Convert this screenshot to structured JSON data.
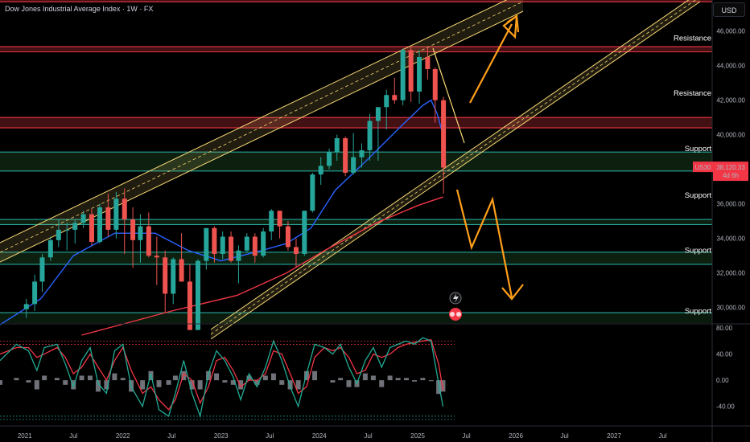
{
  "header": {
    "title": "Dow Jones Industrial Average Index · 1W · FX",
    "currency": "USD"
  },
  "price_tag": {
    "symbol": "US30",
    "price": "38,120.33",
    "countdown": "4d 6h"
  },
  "chart_data": {
    "type": "line",
    "title": "Dow Jones Industrial Average Index · 1W · FX",
    "y_axis": {
      "ticks": [
        "46,000.00",
        "44,000.00",
        "42,000.00",
        "40,000.00",
        "36,000.00",
        "34,000.00",
        "32,000.00",
        "30,000.00"
      ],
      "tick_values": [
        46000,
        44000,
        42000,
        40000,
        36000,
        34000,
        32000,
        30000
      ],
      "ylim": [
        29100,
        47800
      ]
    },
    "x_axis": {
      "ticks": [
        "2021",
        "Jul",
        "2022",
        "Jul",
        "2023",
        "Jul",
        "2024",
        "Jul",
        "2025",
        "Jul",
        "2026",
        "Jul",
        "2027",
        "Jul"
      ],
      "tick_dates": [
        "2021-01-01",
        "2021-07-01",
        "2022-01-01",
        "2022-07-01",
        "2023-01-01",
        "2023-07-01",
        "2024-01-01",
        "2024-07-01",
        "2025-01-01",
        "2025-07-01",
        "2026-01-01",
        "2026-07-01",
        "2027-01-01",
        "2027-07-01"
      ],
      "xlim": [
        "2020-10-01",
        "2028-01-01"
      ]
    },
    "series": [
      {
        "color": "#2962ff",
        "points": [
          [
            "2020-10-01",
            29000
          ],
          [
            "2021-03-01",
            30500
          ],
          [
            "2021-07-01",
            33000
          ],
          [
            "2021-12-01",
            34300
          ],
          [
            "2022-05-01",
            34300
          ],
          [
            "2022-09-01",
            33300
          ],
          [
            "2023-01-01",
            32700
          ],
          [
            "2023-06-01",
            33300
          ],
          [
            "2023-09-01",
            33700
          ],
          [
            "2023-12-01",
            34600
          ],
          [
            "2024-03-01",
            36800
          ],
          [
            "2024-07-01",
            38600
          ],
          [
            "2024-11-01",
            40500
          ],
          [
            "2025-01-20",
            41700
          ],
          [
            "2025-02-20",
            42000
          ],
          [
            "2025-03-15",
            41200
          ],
          [
            "2025-04-05",
            40000
          ]
        ]
      },
      {
        "color": "#f23645",
        "points": [
          [
            "2021-08-01",
            28400
          ],
          [
            "2022-07-01",
            29800
          ],
          [
            "2023-03-01",
            30700
          ],
          [
            "2023-09-01",
            32000
          ],
          [
            "2024-02-01",
            33400
          ],
          [
            "2024-08-01",
            34900
          ],
          [
            "2025-01-01",
            35900
          ],
          [
            "2025-04-05",
            36400
          ]
        ]
      },
      {
        "type": "candlestick",
        "bull_color": "#26a69a",
        "bear_color": "#ef5350",
        "ohlc": [
          [
            "2021-01-01",
            29900,
            30500,
            29400,
            30200
          ],
          [
            "2021-02-01",
            30200,
            31900,
            29800,
            31500
          ],
          [
            "2021-03-01",
            31500,
            33100,
            30900,
            32900
          ],
          [
            "2021-04-01",
            32900,
            34100,
            32700,
            33900
          ],
          [
            "2021-05-01",
            33900,
            35100,
            33500,
            34500
          ],
          [
            "2021-06-01",
            34500,
            34900,
            33300,
            34500
          ],
          [
            "2021-07-01",
            34500,
            35100,
            33700,
            34900
          ],
          [
            "2021-08-01",
            34900,
            35600,
            34600,
            35400
          ],
          [
            "2021-09-01",
            35400,
            35700,
            33600,
            33800
          ],
          [
            "2021-10-01",
            33800,
            36000,
            33700,
            35800
          ],
          [
            "2021-11-01",
            35800,
            36600,
            34100,
            34500
          ],
          [
            "2021-12-01",
            34500,
            36700,
            34000,
            36300
          ],
          [
            "2022-01-01",
            36300,
            36900,
            33100,
            35100
          ],
          [
            "2022-02-01",
            35100,
            35800,
            32300,
            33900
          ],
          [
            "2022-03-01",
            33900,
            35400,
            32600,
            34700
          ],
          [
            "2022-04-01",
            34700,
            35500,
            32900,
            33000
          ],
          [
            "2022-05-01",
            33000,
            34100,
            31300,
            32900
          ],
          [
            "2022-06-01",
            32900,
            33300,
            29700,
            30800
          ],
          [
            "2022-07-01",
            30800,
            32900,
            30200,
            32800
          ],
          [
            "2022-08-01",
            32800,
            34300,
            31600,
            31500
          ],
          [
            "2022-09-01",
            31500,
            32500,
            28700,
            28700
          ],
          [
            "2022-10-01",
            28700,
            32800,
            28700,
            32700
          ],
          [
            "2022-11-01",
            32700,
            34600,
            32200,
            34600
          ],
          [
            "2022-12-01",
            34600,
            34700,
            32600,
            33100
          ],
          [
            "2023-01-01",
            33100,
            34400,
            32800,
            34100
          ],
          [
            "2023-02-01",
            34100,
            34400,
            32600,
            32700
          ],
          [
            "2023-03-01",
            32700,
            33600,
            31400,
            33300
          ],
          [
            "2023-04-01",
            33300,
            34300,
            33200,
            34100
          ],
          [
            "2023-05-01",
            34100,
            34300,
            32600,
            33000
          ],
          [
            "2023-06-01",
            33000,
            34600,
            32900,
            34400
          ],
          [
            "2023-07-01",
            34400,
            35700,
            33900,
            35600
          ],
          [
            "2023-08-01",
            35600,
            35600,
            34000,
            34700
          ],
          [
            "2023-09-01",
            34700,
            35000,
            33300,
            33500
          ],
          [
            "2023-10-01",
            33500,
            34000,
            32300,
            33100
          ],
          [
            "2023-11-01",
            33100,
            35600,
            33000,
            35600
          ],
          [
            "2023-12-01",
            35600,
            37800,
            35500,
            37700
          ],
          [
            "2024-01-01",
            37700,
            38700,
            37100,
            38200
          ],
          [
            "2024-02-01",
            38200,
            39200,
            38000,
            39000
          ],
          [
            "2024-03-01",
            39000,
            40000,
            38500,
            39800
          ],
          [
            "2024-04-01",
            39800,
            39900,
            37600,
            37800
          ],
          [
            "2024-05-01",
            37800,
            40100,
            37700,
            38700
          ],
          [
            "2024-06-01",
            38700,
            39500,
            38100,
            39100
          ],
          [
            "2024-07-01",
            39100,
            41200,
            38500,
            40800
          ],
          [
            "2024-08-01",
            40800,
            41600,
            38500,
            41600
          ],
          [
            "2024-09-01",
            41600,
            42600,
            40300,
            42300
          ],
          [
            "2024-10-01",
            42300,
            43300,
            41800,
            42000
          ],
          [
            "2024-11-01",
            42000,
            45000,
            41700,
            44900
          ],
          [
            "2024-12-01",
            44900,
            45100,
            41900,
            42500
          ],
          [
            "2025-01-01",
            42500,
            44900,
            41800,
            44500
          ],
          [
            "2025-02-01",
            44500,
            45100,
            43200,
            43800
          ],
          [
            "2025-03-01",
            43800,
            43900,
            40700,
            42000
          ],
          [
            "2025-04-01",
            42000,
            42200,
            36600,
            38100
          ]
        ]
      },
      {
        "type": "oscillator",
        "color": "#22ab94",
        "ylim": [
          -65,
          85
        ],
        "ticks": [
          "80.00",
          "40.00",
          "0.00",
          "-40.00"
        ],
        "tick_values": [
          80,
          40,
          0,
          -40
        ],
        "points": [
          [
            "2020-10-01",
            30
          ],
          [
            "2020-12-01",
            55
          ],
          [
            "2021-01-15",
            45
          ],
          [
            "2021-02-15",
            15
          ],
          [
            "2021-03-15",
            50
          ],
          [
            "2021-05-01",
            55
          ],
          [
            "2021-06-01",
            25
          ],
          [
            "2021-07-01",
            -10
          ],
          [
            "2021-08-01",
            30
          ],
          [
            "2021-09-01",
            50
          ],
          [
            "2021-10-01",
            -5
          ],
          [
            "2021-11-01",
            -20
          ],
          [
            "2021-12-01",
            45
          ],
          [
            "2022-01-01",
            55
          ],
          [
            "2022-02-01",
            -10
          ],
          [
            "2022-03-15",
            -40
          ],
          [
            "2022-04-15",
            10
          ],
          [
            "2022-05-15",
            -45
          ],
          [
            "2022-06-20",
            -55
          ],
          [
            "2022-07-15",
            -20
          ],
          [
            "2022-08-15",
            30
          ],
          [
            "2022-09-15",
            -20
          ],
          [
            "2022-10-15",
            -55
          ],
          [
            "2022-11-15",
            10
          ],
          [
            "2022-12-15",
            45
          ],
          [
            "2023-01-15",
            30
          ],
          [
            "2023-02-15",
            5
          ],
          [
            "2023-03-15",
            -30
          ],
          [
            "2023-04-15",
            10
          ],
          [
            "2023-05-15",
            -10
          ],
          [
            "2023-06-15",
            20
          ],
          [
            "2023-07-15",
            60
          ],
          [
            "2023-08-15",
            30
          ],
          [
            "2023-09-15",
            -10
          ],
          [
            "2023-10-15",
            -40
          ],
          [
            "2023-11-15",
            10
          ],
          [
            "2023-12-15",
            55
          ],
          [
            "2024-01-20",
            50
          ],
          [
            "2024-02-20",
            40
          ],
          [
            "2024-03-20",
            55
          ],
          [
            "2024-04-20",
            20
          ],
          [
            "2024-05-20",
            -5
          ],
          [
            "2024-06-20",
            30
          ],
          [
            "2024-07-20",
            50
          ],
          [
            "2024-08-20",
            20
          ],
          [
            "2024-09-20",
            50
          ],
          [
            "2024-10-20",
            55
          ],
          [
            "2024-11-20",
            60
          ],
          [
            "2024-12-20",
            55
          ],
          [
            "2025-01-20",
            65
          ],
          [
            "2025-02-20",
            60
          ],
          [
            "2025-03-20",
            -5
          ],
          [
            "2025-04-05",
            -40
          ]
        ]
      },
      {
        "type": "oscillator",
        "color": "#f23645",
        "points": [
          [
            "2020-10-01",
            40
          ],
          [
            "2020-12-01",
            50
          ],
          [
            "2021-01-15",
            50
          ],
          [
            "2021-02-15",
            35
          ],
          [
            "2021-03-15",
            40
          ],
          [
            "2021-05-01",
            50
          ],
          [
            "2021-06-01",
            35
          ],
          [
            "2021-07-01",
            10
          ],
          [
            "2021-08-01",
            20
          ],
          [
            "2021-09-01",
            40
          ],
          [
            "2021-10-01",
            20
          ],
          [
            "2021-11-01",
            0
          ],
          [
            "2021-12-01",
            30
          ],
          [
            "2022-01-01",
            50
          ],
          [
            "2022-02-01",
            15
          ],
          [
            "2022-03-15",
            -20
          ],
          [
            "2022-04-15",
            -10
          ],
          [
            "2022-05-15",
            -30
          ],
          [
            "2022-06-20",
            -45
          ],
          [
            "2022-07-15",
            -30
          ],
          [
            "2022-08-15",
            10
          ],
          [
            "2022-09-15",
            0
          ],
          [
            "2022-10-15",
            -35
          ],
          [
            "2022-11-15",
            -10
          ],
          [
            "2022-12-15",
            30
          ],
          [
            "2023-01-15",
            35
          ],
          [
            "2023-02-15",
            15
          ],
          [
            "2023-03-15",
            -10
          ],
          [
            "2023-04-15",
            0
          ],
          [
            "2023-05-15",
            0
          ],
          [
            "2023-06-15",
            10
          ],
          [
            "2023-07-15",
            45
          ],
          [
            "2023-08-15",
            40
          ],
          [
            "2023-09-15",
            10
          ],
          [
            "2023-10-15",
            -20
          ],
          [
            "2023-11-15",
            -10
          ],
          [
            "2023-12-15",
            35
          ],
          [
            "2024-01-20",
            50
          ],
          [
            "2024-02-20",
            45
          ],
          [
            "2024-03-20",
            50
          ],
          [
            "2024-04-20",
            35
          ],
          [
            "2024-05-20",
            10
          ],
          [
            "2024-06-20",
            15
          ],
          [
            "2024-07-20",
            40
          ],
          [
            "2024-08-20",
            35
          ],
          [
            "2024-09-20",
            40
          ],
          [
            "2024-10-20",
            50
          ],
          [
            "2024-11-20",
            55
          ],
          [
            "2024-12-20",
            58
          ],
          [
            "2025-01-20",
            60
          ],
          [
            "2025-02-20",
            62
          ],
          [
            "2025-03-20",
            25
          ],
          [
            "2025-04-05",
            -15
          ]
        ]
      }
    ],
    "annotations": [
      {
        "text": "Resistance",
        "price": 45600
      },
      {
        "text": "Resistance",
        "price": 42400
      },
      {
        "text": "Support",
        "price": 39200
      },
      {
        "text": "Support",
        "price": 36500
      },
      {
        "text": "Support",
        "price": 33300
      },
      {
        "text": "Support",
        "price": 29800
      }
    ],
    "price_levels": [
      {
        "kind": "resistance",
        "price": 47700
      },
      {
        "kind": "resistance",
        "price": 45100
      },
      {
        "kind": "resistance",
        "price": 44800
      },
      {
        "kind": "resistance",
        "price": 41000
      },
      {
        "kind": "resistance",
        "price": 40400
      },
      {
        "kind": "support",
        "price": 39000
      },
      {
        "kind": "support",
        "price": 37900
      },
      {
        "kind": "support",
        "price": 35100
      },
      {
        "kind": "support",
        "price": 34800
      },
      {
        "kind": "support",
        "price": 33200
      },
      {
        "kind": "support",
        "price": 32500
      },
      {
        "kind": "support",
        "price": 29700
      }
    ],
    "colors": {
      "background": "#000000",
      "resistance_zone": "#7a1e22",
      "resistance_line": "#f23645",
      "support_zone": "#173a1d",
      "support_line": "#26a69a",
      "channel": "#f7d774",
      "projection_arrows": "#ff9f1a",
      "price_tag": "#f23645"
    }
  }
}
